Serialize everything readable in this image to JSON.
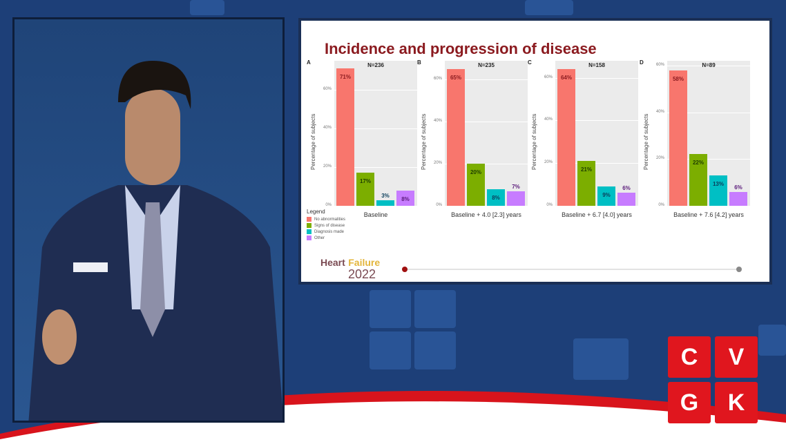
{
  "slide": {
    "title": "Incidence and progression of disease",
    "legend": {
      "title": "Legend",
      "items": [
        "No abnormalities",
        "Signs of disease",
        "Diagnosis made",
        "Other"
      ]
    },
    "logo": {
      "word1": "Heart",
      "word2": "Failure",
      "year": "2022"
    },
    "progress": 0
  },
  "brand": {
    "letters": [
      "C",
      "V",
      "G",
      "K"
    ],
    "color": "#e0161e"
  },
  "colors": [
    "#f8766d",
    "#7cae00",
    "#00bfc4",
    "#c77cff"
  ],
  "chart_data": [
    {
      "type": "bar",
      "panel": "A",
      "n_label": "N=236",
      "xlabel": "Baseline",
      "ylabel": "Percentage of subjects",
      "ylim": [
        0,
        75
      ],
      "yticks": [
        "0%",
        "20%",
        "40%",
        "60%"
      ],
      "categories": [
        "No abnormalities",
        "Signs of disease",
        "Diagnosis made",
        "Other"
      ],
      "values": [
        71,
        17,
        3,
        8
      ],
      "labels": [
        "71%",
        "17%",
        "3%",
        "8%"
      ],
      "grid": true
    },
    {
      "type": "bar",
      "panel": "B",
      "n_label": "N=235",
      "xlabel": "Baseline + 4.0 [2.3] years",
      "ylabel": "Percentage of subjects",
      "ylim": [
        0,
        69
      ],
      "yticks": [
        "0%",
        "20%",
        "40%",
        "60%"
      ],
      "categories": [
        "No abnormalities",
        "Signs of disease",
        "Diagnosis made",
        "Other"
      ],
      "values": [
        65,
        20,
        8,
        7
      ],
      "labels": [
        "65%",
        "20%",
        "8%",
        "7%"
      ],
      "grid": true
    },
    {
      "type": "bar",
      "panel": "C",
      "n_label": "N=158",
      "xlabel": "Baseline + 6.7 [4.0] years",
      "ylabel": "Percentage of subjects",
      "ylim": [
        0,
        68
      ],
      "yticks": [
        "0%",
        "20%",
        "40%",
        "60%"
      ],
      "categories": [
        "No abnormalities",
        "Signs of disease",
        "Diagnosis made",
        "Other"
      ],
      "values": [
        64,
        21,
        9,
        6
      ],
      "labels": [
        "64%",
        "21%",
        "9%",
        "6%"
      ],
      "grid": true
    },
    {
      "type": "bar",
      "panel": "D",
      "n_label": "N=89",
      "xlabel": "Baseline + 7.6 [4.2] years",
      "ylabel": "Percentage of subjects",
      "ylim": [
        0,
        62
      ],
      "yticks": [
        "0%",
        "20%",
        "40%",
        "60%"
      ],
      "categories": [
        "No abnormalities",
        "Signs of disease",
        "Diagnosis made",
        "Other"
      ],
      "values": [
        58,
        22,
        13,
        6
      ],
      "labels": [
        "58%",
        "22%",
        "13%",
        "6%"
      ],
      "grid": true
    }
  ]
}
